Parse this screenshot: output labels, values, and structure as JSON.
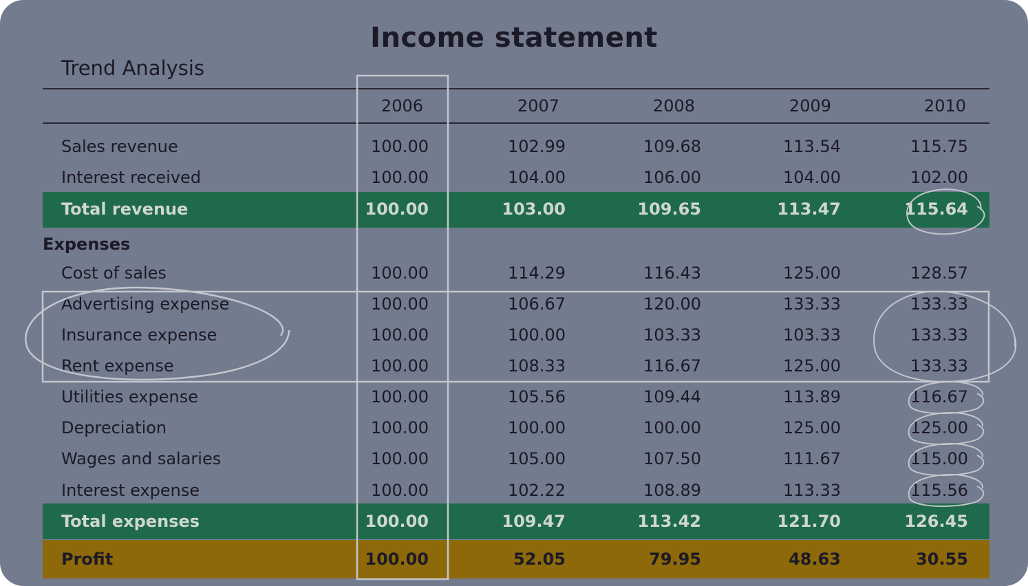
{
  "title": "Income statement",
  "subtitle": "Trend Analysis",
  "colors": {
    "background": "#737b8e",
    "total_band": "#1f6a4a",
    "profit_band": "#8d6909",
    "annotation": "#c9ccd2"
  },
  "years": [
    "2006",
    "2007",
    "2008",
    "2009",
    "2010"
  ],
  "rows": [
    {
      "label": "Sales revenue",
      "style": "normal",
      "values": [
        "100.00",
        "102.99",
        "109.68",
        "113.54",
        "115.75"
      ]
    },
    {
      "label": "Interest received",
      "style": "normal",
      "values": [
        "100.00",
        "104.00",
        "106.00",
        "104.00",
        "102.00"
      ]
    },
    {
      "label": "Total revenue",
      "style": "total",
      "values": [
        "100.00",
        "103.00",
        "109.65",
        "113.47",
        "115.64"
      ]
    },
    {
      "label": "Expenses",
      "style": "section",
      "values": []
    },
    {
      "label": "Cost of sales",
      "style": "normal",
      "values": [
        "100.00",
        "114.29",
        "116.43",
        "125.00",
        "128.57"
      ]
    },
    {
      "label": "Advertising expense",
      "style": "normal",
      "values": [
        "100.00",
        "106.67",
        "120.00",
        "133.33",
        "133.33"
      ]
    },
    {
      "label": "Insurance expense",
      "style": "normal",
      "values": [
        "100.00",
        "100.00",
        "103.33",
        "103.33",
        "133.33"
      ]
    },
    {
      "label": "Rent expense",
      "style": "normal",
      "values": [
        "100.00",
        "108.33",
        "116.67",
        "125.00",
        "133.33"
      ]
    },
    {
      "label": "Utilities expense",
      "style": "normal",
      "values": [
        "100.00",
        "105.56",
        "109.44",
        "113.89",
        "116.67"
      ]
    },
    {
      "label": "Depreciation",
      "style": "normal",
      "values": [
        "100.00",
        "100.00",
        "100.00",
        "125.00",
        "125.00"
      ]
    },
    {
      "label": "Wages and salaries",
      "style": "normal",
      "values": [
        "100.00",
        "105.00",
        "107.50",
        "111.67",
        "115.00"
      ]
    },
    {
      "label": "Interest expense",
      "style": "normal",
      "values": [
        "100.00",
        "102.22",
        "108.89",
        "113.33",
        "115.56"
      ]
    },
    {
      "label": "Total expenses",
      "style": "total",
      "values": [
        "100.00",
        "109.47",
        "113.42",
        "121.70",
        "126.45"
      ]
    },
    {
      "label": "Profit",
      "style": "profit",
      "values": [
        "100.00",
        "52.05",
        "79.95",
        "48.63",
        "30.55"
      ]
    }
  ]
}
